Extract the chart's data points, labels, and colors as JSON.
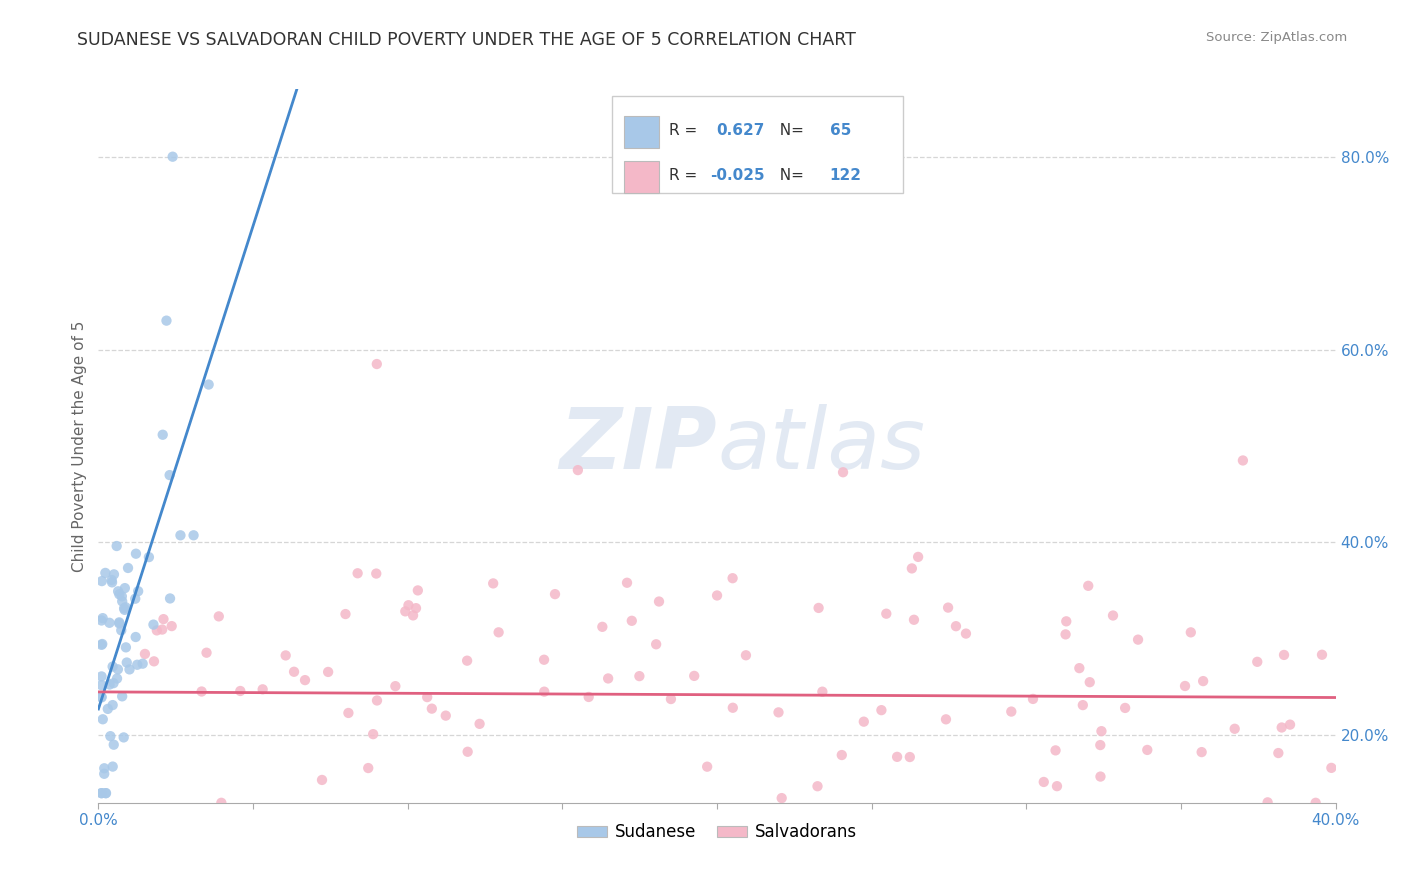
{
  "title": "SUDANESE VS SALVADORAN CHILD POVERTY UNDER THE AGE OF 5 CORRELATION CHART",
  "source_text": "Source: ZipAtlas.com",
  "ylabel": "Child Poverty Under the Age of 5",
  "xlim": [
    0.0,
    0.4
  ],
  "ylim": [
    0.13,
    0.87
  ],
  "xticks": [
    0.0,
    0.05,
    0.1,
    0.15,
    0.2,
    0.25,
    0.3,
    0.35,
    0.4
  ],
  "yticks": [
    0.2,
    0.4,
    0.6,
    0.8
  ],
  "yticklabels": [
    "20.0%",
    "40.0%",
    "60.0%",
    "80.0%"
  ],
  "blue_scatter_color": "#a8c8e8",
  "pink_scatter_color": "#f4b8c8",
  "blue_line_color": "#4488cc",
  "pink_line_color": "#e06080",
  "legend_blue_R": "0.627",
  "legend_blue_N": "65",
  "legend_pink_R": "-0.025",
  "legend_pink_N": "122",
  "legend_label_blue": "Sudanese",
  "legend_label_pink": "Salvadorans",
  "bg_color": "#ffffff",
  "grid_color": "#cccccc",
  "title_color": "#333333",
  "tick_color": "#4488cc",
  "ylabel_color": "#666666"
}
